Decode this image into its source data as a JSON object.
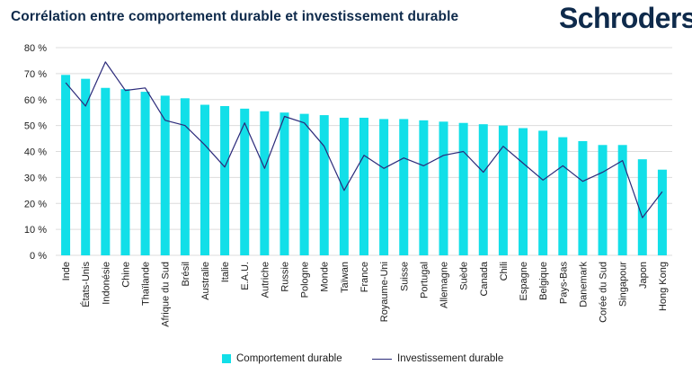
{
  "title": "Corrélation entre comportement durable et investissement durable",
  "brand": "Schroders",
  "colors": {
    "bar": "#12dfe8",
    "line": "#2b2a7a",
    "grid": "#dcdcdc",
    "title": "#0e2a4b"
  },
  "chart_data": {
    "type": "bar",
    "title": "Corrélation entre comportement durable et investissement durable",
    "xlabel": "",
    "ylabel": "",
    "ylim": [
      0,
      80
    ],
    "yticks": [
      "0 %",
      "10 %",
      "20 %",
      "30 %",
      "40 %",
      "50 %",
      "60 %",
      "70 %",
      "80 %"
    ],
    "grid": true,
    "legend_position": "bottom",
    "categories": [
      "Inde",
      "États-Unis",
      "Indonésie",
      "Chine",
      "Thaïlande",
      "Afrique du Sud",
      "Brésil",
      "Australie",
      "Italie",
      "E.A.U.",
      "Autriche",
      "Russie",
      "Pologne",
      "Monde",
      "Taïwan",
      "France",
      "Royaume-Uni",
      "Suisse",
      "Portugal",
      "Allemagne",
      "Suède",
      "Canada",
      "Chili",
      "Espagne",
      "Belgique",
      "Pays-Bas",
      "Danemark",
      "Corée du Sud",
      "Singapour",
      "Japon",
      "Hong Kong"
    ],
    "series": [
      {
        "name": "Comportement durable",
        "type": "bar",
        "values": [
          69.5,
          68,
          64.5,
          64,
          63,
          61.5,
          60.5,
          58,
          57.5,
          56.5,
          55.5,
          55,
          54.5,
          54,
          53,
          53,
          52.5,
          52.5,
          52,
          51.5,
          51,
          50.5,
          50,
          49,
          48,
          45.5,
          44,
          42.5,
          42.5,
          37,
          33
        ]
      },
      {
        "name": "Investissement durable",
        "type": "line",
        "values": [
          66.5,
          57.5,
          74.5,
          63.5,
          64.5,
          52,
          50,
          42.5,
          34,
          51,
          33.5,
          53.5,
          51,
          42,
          25,
          38.5,
          33.5,
          37.5,
          34.5,
          38.5,
          40,
          32,
          42,
          35.5,
          29,
          34.5,
          28.5,
          32,
          36.5,
          14.5,
          24.5
        ]
      }
    ]
  }
}
